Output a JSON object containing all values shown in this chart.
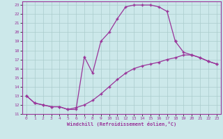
{
  "xlabel": "Windchill (Refroidissement éolien,°C)",
  "bg_color": "#cce8ea",
  "grid_color": "#aacccc",
  "line_color": "#993399",
  "xlim": [
    -0.5,
    23.5
  ],
  "ylim": [
    11,
    23.4
  ],
  "xticks": [
    0,
    1,
    2,
    3,
    4,
    5,
    6,
    7,
    8,
    9,
    10,
    11,
    12,
    13,
    14,
    15,
    16,
    17,
    18,
    19,
    20,
    21,
    22,
    23
  ],
  "yticks": [
    11,
    12,
    13,
    14,
    15,
    16,
    17,
    18,
    19,
    20,
    21,
    22,
    23
  ],
  "series1_x": [
    0,
    1,
    2,
    3,
    4,
    5,
    6,
    7,
    8,
    9,
    10,
    11,
    12,
    13,
    14,
    15,
    16,
    17,
    18
  ],
  "series1_y": [
    13,
    12.2,
    12.0,
    11.8,
    11.8,
    11.5,
    11.5,
    17.3,
    15.5,
    19.0,
    20.0,
    21.5,
    22.8,
    23.0,
    23.0,
    23.0,
    22.8,
    22.3,
    19.0
  ],
  "series2_x": [
    0,
    1,
    2,
    3,
    4,
    5,
    6,
    7,
    8,
    9,
    10,
    11,
    12,
    13,
    14,
    15,
    16,
    17,
    18,
    19,
    20,
    21,
    22,
    23
  ],
  "series2_y": [
    13,
    12.2,
    12.0,
    11.8,
    11.8,
    11.5,
    11.7,
    12.0,
    12.5,
    13.2,
    14.0,
    14.8,
    15.5,
    16.0,
    16.3,
    16.5,
    16.7,
    17.0,
    17.2,
    17.5,
    17.5,
    17.2,
    16.8,
    16.5
  ],
  "series3_x": [
    18,
    19,
    20,
    21,
    22,
    23
  ],
  "series3_y": [
    19.0,
    17.8,
    17.5,
    17.2,
    16.8,
    16.5
  ]
}
